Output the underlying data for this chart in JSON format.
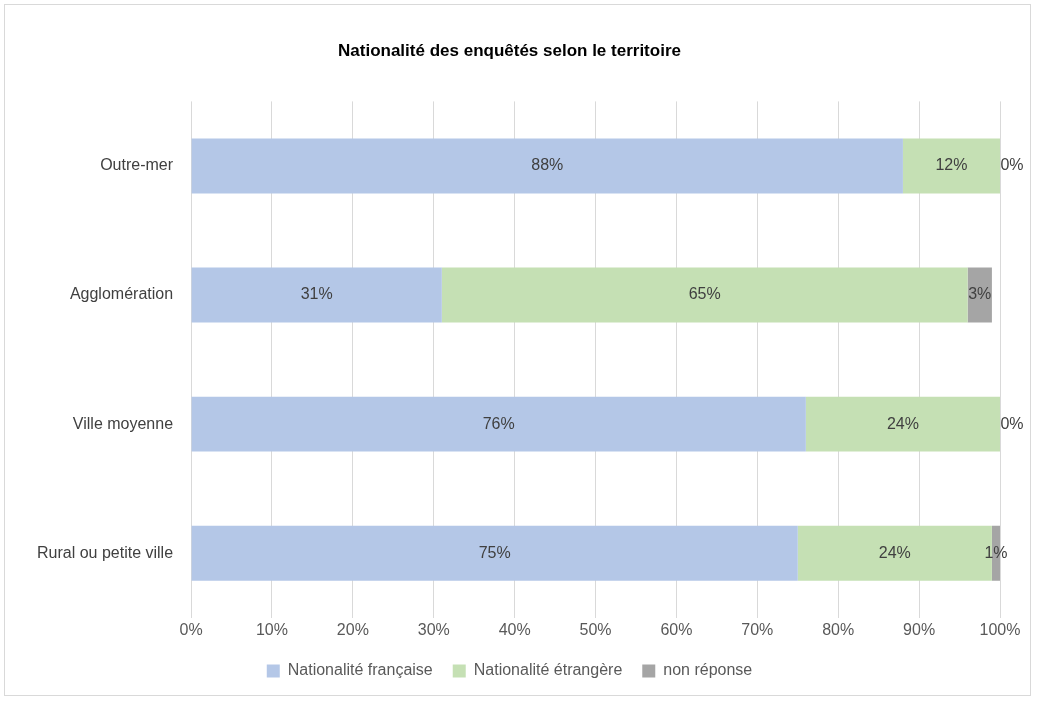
{
  "chart_data": {
    "type": "bar",
    "orientation": "horizontal",
    "stacked": true,
    "title": "Nationalité des enquêtés selon le territoire",
    "categories": [
      "Outre-mer",
      "Agglomération",
      "Ville moyenne",
      "Rural ou petite ville"
    ],
    "series": [
      {
        "name": "Nationalité française",
        "color": "#b4c7e7",
        "values": [
          88,
          31,
          76,
          75
        ],
        "value_labels": [
          "88%",
          "31%",
          "76%",
          "75%"
        ]
      },
      {
        "name": "Nationalité étrangère",
        "color": "#c5e0b4",
        "values": [
          12,
          65,
          24,
          24
        ],
        "value_labels": [
          "12%",
          "65%",
          "24%",
          "24%"
        ]
      },
      {
        "name": "non réponse",
        "color": "#a5a5a5",
        "values": [
          0,
          3,
          0,
          1
        ],
        "value_labels": [
          "0%",
          "3%",
          "0%",
          "1%"
        ]
      }
    ],
    "xlim": [
      0,
      100
    ],
    "xticks": [
      {
        "value": 0,
        "label": "0%"
      },
      {
        "value": 10,
        "label": "10%"
      },
      {
        "value": 20,
        "label": "20%"
      },
      {
        "value": 30,
        "label": "30%"
      },
      {
        "value": 40,
        "label": "40%"
      },
      {
        "value": 50,
        "label": "50%"
      },
      {
        "value": 60,
        "label": "60%"
      },
      {
        "value": 70,
        "label": "70%"
      },
      {
        "value": 80,
        "label": "80%"
      },
      {
        "value": 90,
        "label": "90%"
      },
      {
        "value": 100,
        "label": "100%"
      }
    ],
    "grid": "x",
    "legend": "bottom"
  }
}
